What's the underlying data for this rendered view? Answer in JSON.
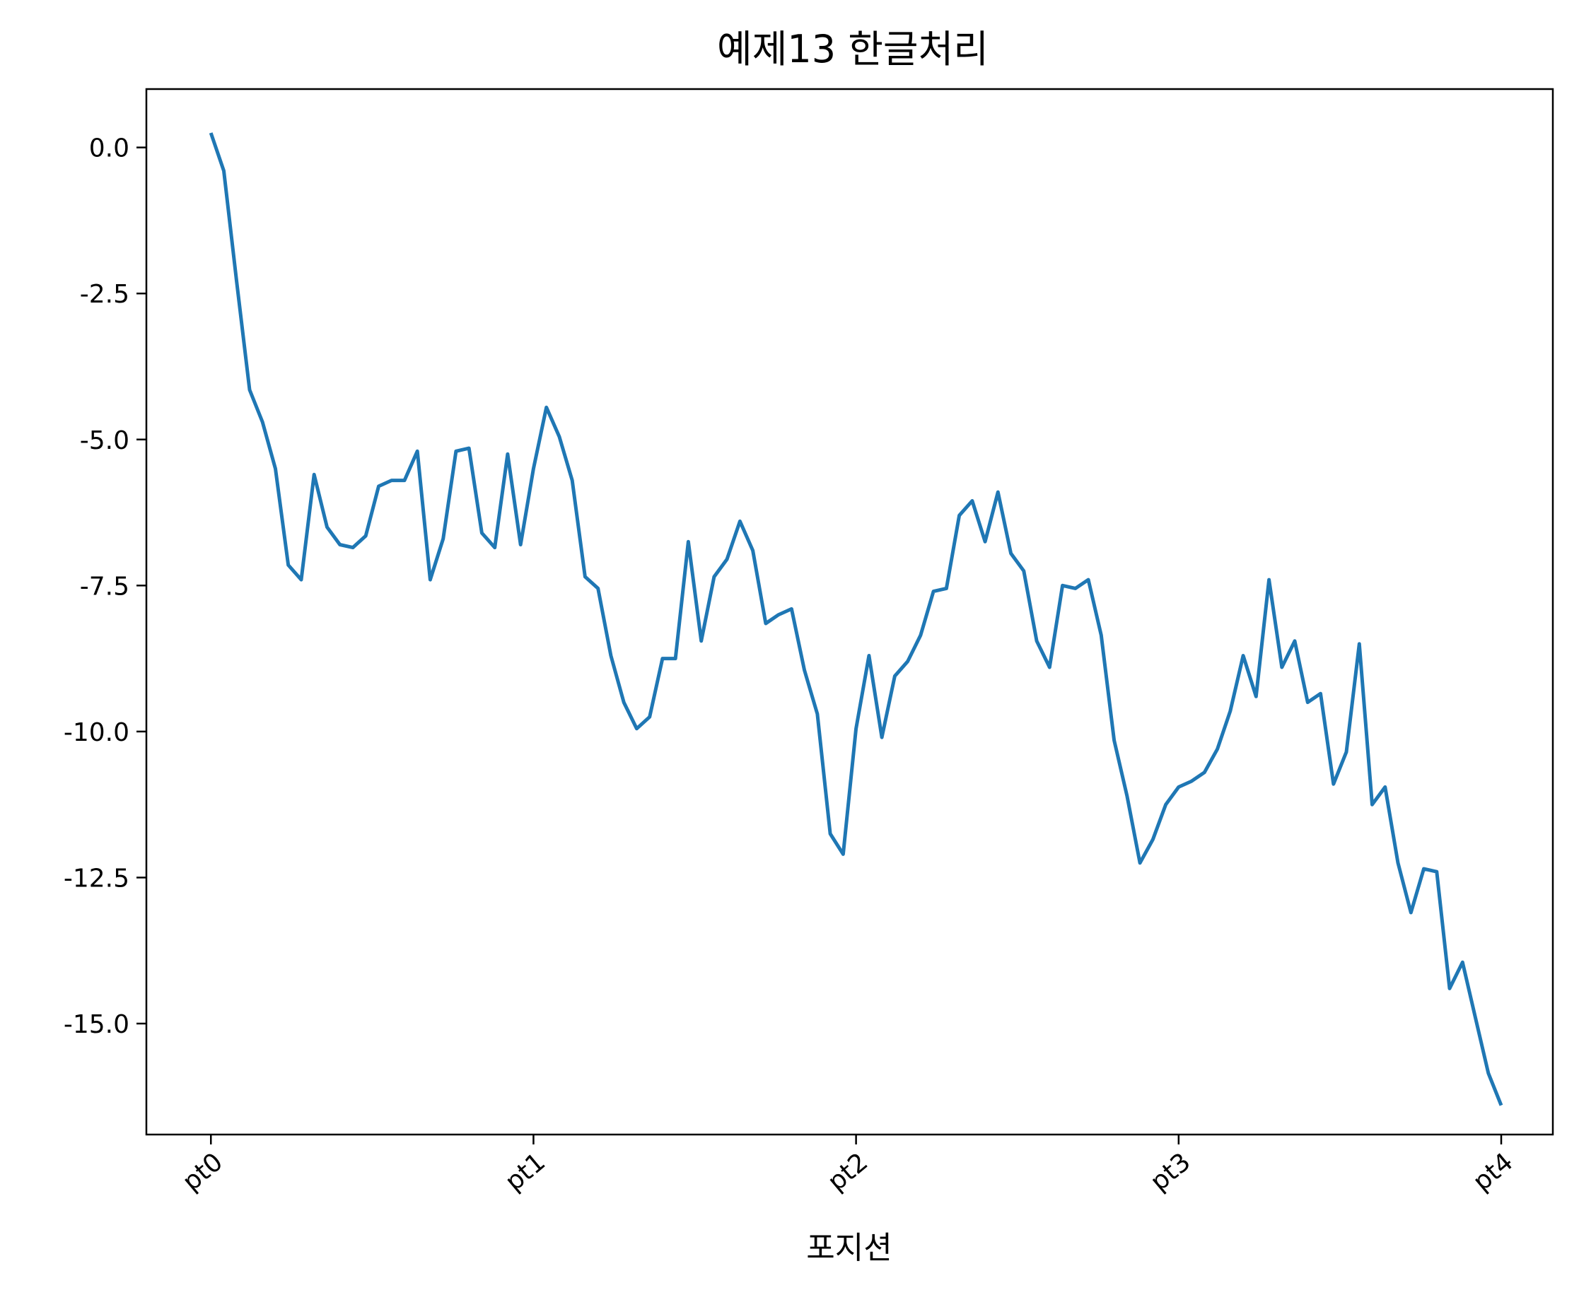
{
  "chart_data": {
    "type": "line",
    "title": "예제13 한글처리",
    "xlabel": "포지션",
    "ylabel": "",
    "grid": false,
    "xlim": [
      -5,
      104
    ],
    "ylim": [
      -16.9,
      1.0
    ],
    "x_ticks": [
      {
        "value": 0,
        "label": "pt0"
      },
      {
        "value": 25,
        "label": "pt1"
      },
      {
        "value": 50,
        "label": "pt2"
      },
      {
        "value": 75,
        "label": "pt3"
      },
      {
        "value": 100,
        "label": "pt4"
      }
    ],
    "x_tick_rotation": -40,
    "y_ticks": [
      {
        "value": 0,
        "label": "0.0"
      },
      {
        "value": -2.5,
        "label": "-2.5"
      },
      {
        "value": -5,
        "label": "-5.0"
      },
      {
        "value": -7.5,
        "label": "-7.5"
      },
      {
        "value": -10,
        "label": "-10.0"
      },
      {
        "value": -12.5,
        "label": "-12.5"
      },
      {
        "value": -15,
        "label": "-15.0"
      }
    ],
    "series": [
      {
        "color": "#1f77b4",
        "x": [
          0,
          1,
          2,
          3,
          4,
          5,
          6,
          7,
          8,
          9,
          10,
          11,
          12,
          13,
          14,
          15,
          16,
          17,
          18,
          19,
          20,
          21,
          22,
          23,
          24,
          25,
          26,
          27,
          28,
          29,
          30,
          31,
          32,
          33,
          34,
          35,
          36,
          37,
          38,
          39,
          40,
          41,
          42,
          43,
          44,
          45,
          46,
          47,
          48,
          49,
          50,
          51,
          52,
          53,
          54,
          55,
          56,
          57,
          58,
          59,
          60,
          61,
          62,
          63,
          64,
          65,
          66,
          67,
          68,
          69,
          70,
          71,
          72,
          73,
          74,
          75,
          76,
          77,
          78,
          79,
          80,
          81,
          82,
          83,
          84,
          85,
          86,
          87,
          88,
          89,
          90,
          91,
          92,
          93,
          94,
          95,
          96,
          97,
          98,
          99,
          100
        ],
        "values": [
          0.25,
          -0.4,
          -2.3,
          -4.15,
          -4.7,
          -5.5,
          -7.15,
          -7.4,
          -5.6,
          -6.5,
          -6.8,
          -6.85,
          -6.65,
          -5.8,
          -5.7,
          -5.7,
          -5.2,
          -7.4,
          -6.7,
          -5.2,
          -5.15,
          -6.6,
          -6.85,
          -5.25,
          -6.8,
          -5.5,
          -4.45,
          -4.95,
          -5.7,
          -7.35,
          -7.55,
          -8.7,
          -9.5,
          -9.95,
          -9.75,
          -8.75,
          -8.75,
          -6.75,
          -8.45,
          -7.35,
          -7.05,
          -6.4,
          -6.9,
          -8.15,
          -8.0,
          -7.9,
          -8.95,
          -9.7,
          -11.75,
          -12.1,
          -9.95,
          -8.7,
          -10.1,
          -9.05,
          -8.8,
          -8.35,
          -7.6,
          -7.55,
          -6.3,
          -6.05,
          -6.75,
          -5.9,
          -6.95,
          -7.25,
          -8.45,
          -8.9,
          -7.5,
          -7.55,
          -7.4,
          -8.35,
          -10.15,
          -11.1,
          -12.25,
          -11.85,
          -11.25,
          -10.95,
          -10.85,
          -10.7,
          -10.3,
          -9.65,
          -8.7,
          -9.4,
          -7.4,
          -8.9,
          -8.45,
          -9.5,
          -9.35,
          -10.9,
          -10.35,
          -8.5,
          -11.25,
          -10.95,
          -12.25,
          -13.1,
          -12.35,
          -12.4,
          -14.4,
          -13.95,
          -14.9,
          -15.85,
          -16.4
        ]
      }
    ]
  }
}
